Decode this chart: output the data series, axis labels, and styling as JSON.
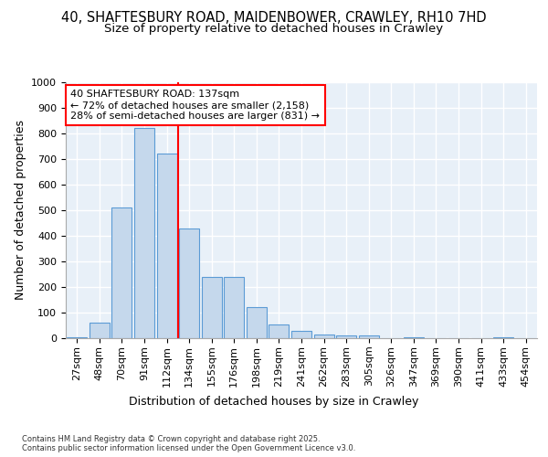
{
  "title_line1": "40, SHAFTESBURY ROAD, MAIDENBOWER, CRAWLEY, RH10 7HD",
  "title_line2": "Size of property relative to detached houses in Crawley",
  "xlabel": "Distribution of detached houses by size in Crawley",
  "ylabel": "Number of detached properties",
  "footnote": "Contains HM Land Registry data © Crown copyright and database right 2025.\nContains public sector information licensed under the Open Government Licence v3.0.",
  "categories": [
    "27sqm",
    "48sqm",
    "70sqm",
    "91sqm",
    "112sqm",
    "134sqm",
    "155sqm",
    "176sqm",
    "198sqm",
    "219sqm",
    "241sqm",
    "262sqm",
    "283sqm",
    "305sqm",
    "326sqm",
    "347sqm",
    "369sqm",
    "390sqm",
    "411sqm",
    "433sqm",
    "454sqm"
  ],
  "bar_values": [
    5,
    60,
    510,
    820,
    720,
    430,
    240,
    240,
    120,
    55,
    30,
    15,
    10,
    10,
    0,
    5,
    0,
    0,
    0,
    5,
    0
  ],
  "bar_color": "#c5d8ec",
  "bar_edge_color": "#5b9bd5",
  "vline_index": 5,
  "vline_color": "red",
  "annotation_text": "40 SHAFTESBURY ROAD: 137sqm\n← 72% of detached houses are smaller (2,158)\n28% of semi-detached houses are larger (831) →",
  "annotation_box_color": "white",
  "annotation_box_edge": "red",
  "ylim": [
    0,
    1000
  ],
  "yticks": [
    0,
    100,
    200,
    300,
    400,
    500,
    600,
    700,
    800,
    900,
    1000
  ],
  "background_color": "#e8f0f8",
  "grid_color": "white",
  "title_fontsize": 10.5,
  "subtitle_fontsize": 9.5,
  "axis_label_fontsize": 9,
  "tick_fontsize": 8,
  "annotation_fontsize": 8
}
